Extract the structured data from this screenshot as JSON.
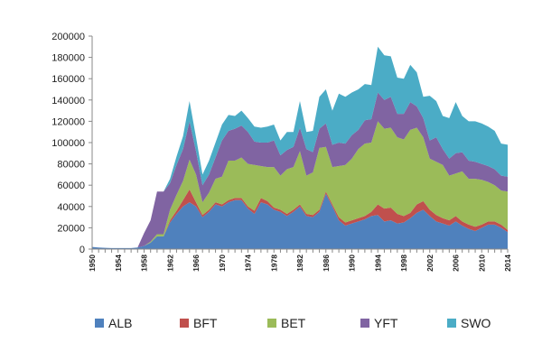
{
  "chart_data": {
    "type": "area",
    "stacked": true,
    "title": "",
    "xlabel": "",
    "ylabel": "",
    "xlim": [
      1950,
      2014
    ],
    "ylim": [
      0,
      200000
    ],
    "y_ticks": [
      0,
      20000,
      40000,
      60000,
      80000,
      100000,
      120000,
      140000,
      160000,
      180000,
      200000
    ],
    "y_tick_labels": [
      "0",
      "20000",
      "40000",
      "60000",
      "80000",
      "100000",
      "120000",
      "140000",
      "160000",
      "180000",
      "200000"
    ],
    "x_tick_labels": [
      "1950",
      "1954",
      "1958",
      "1962",
      "1966",
      "1970",
      "1974",
      "1978",
      "1982",
      "1986",
      "1990",
      "1994",
      "1998",
      "2002",
      "2006",
      "2010",
      "2014"
    ],
    "grid": false,
    "legend_position": "bottom",
    "x": [
      1950,
      1951,
      1952,
      1953,
      1954,
      1955,
      1956,
      1957,
      1958,
      1959,
      1960,
      1961,
      1962,
      1963,
      1964,
      1965,
      1966,
      1967,
      1968,
      1969,
      1970,
      1971,
      1972,
      1973,
      1974,
      1975,
      1976,
      1977,
      1978,
      1979,
      1980,
      1981,
      1982,
      1983,
      1984,
      1985,
      1986,
      1987,
      1988,
      1989,
      1990,
      1991,
      1992,
      1993,
      1994,
      1995,
      1996,
      1997,
      1998,
      1999,
      2000,
      2001,
      2002,
      2003,
      2004,
      2005,
      2006,
      2007,
      2008,
      2009,
      2010,
      2011,
      2012,
      2013,
      2014
    ],
    "series": [
      {
        "name": "ALB",
        "color": "#4f81bd",
        "values": [
          2000,
          1500,
          1200,
          1000,
          1000,
          1000,
          1000,
          1500,
          3000,
          6000,
          12000,
          12000,
          25000,
          33000,
          40000,
          44000,
          40000,
          30000,
          35000,
          42000,
          40000,
          44000,
          46000,
          46000,
          38000,
          33000,
          44000,
          42000,
          37000,
          35000,
          31000,
          35000,
          40000,
          31000,
          30000,
          35000,
          52000,
          40000,
          27000,
          22000,
          24000,
          26000,
          28000,
          31000,
          32000,
          26000,
          27000,
          24000,
          25000,
          29000,
          34000,
          37000,
          31000,
          26000,
          24000,
          22000,
          26000,
          22000,
          19000,
          17000,
          20000,
          23000,
          23000,
          20000,
          16000
        ]
      },
      {
        "name": "BFT",
        "color": "#c0504d",
        "values": [
          0,
          0,
          0,
          0,
          0,
          0,
          0,
          0,
          0,
          0,
          0,
          0,
          2000,
          3000,
          6000,
          12000,
          4000,
          2000,
          2000,
          2000,
          2000,
          2000,
          2000,
          2000,
          2000,
          3000,
          4000,
          3000,
          2000,
          2000,
          2000,
          2000,
          2000,
          2000,
          2000,
          2000,
          2000,
          2000,
          3000,
          3000,
          3000,
          3000,
          3000,
          4000,
          10000,
          12000,
          12000,
          9000,
          6000,
          5000,
          8000,
          8000,
          6000,
          6000,
          5000,
          5000,
          5000,
          4000,
          4000,
          4000,
          3000,
          3000,
          3000,
          3000,
          2000
        ]
      },
      {
        "name": "BET",
        "color": "#9bbb59",
        "values": [
          0,
          0,
          0,
          0,
          0,
          0,
          0,
          0,
          0,
          1000,
          2000,
          2000,
          10000,
          15000,
          18000,
          28000,
          26000,
          12000,
          16000,
          22000,
          26000,
          37000,
          35000,
          38000,
          40000,
          43000,
          30000,
          32000,
          38000,
          32000,
          42000,
          40000,
          50000,
          36000,
          40000,
          58000,
          42000,
          35000,
          48000,
          54000,
          58000,
          65000,
          68000,
          65000,
          78000,
          75000,
          75000,
          72000,
          72000,
          78000,
          72000,
          60000,
          48000,
          50000,
          50000,
          42000,
          40000,
          47000,
          43000,
          45000,
          42000,
          37000,
          34000,
          32000,
          36000
        ]
      },
      {
        "name": "YFT",
        "color": "#8064a2",
        "values": [
          0,
          0,
          0,
          0,
          0,
          0,
          0,
          0,
          12000,
          20000,
          40000,
          40000,
          25000,
          28000,
          30000,
          36000,
          22000,
          16000,
          17000,
          20000,
          34000,
          28000,
          30000,
          30000,
          30000,
          22000,
          22000,
          23000,
          25000,
          19000,
          18000,
          19000,
          22000,
          25000,
          19000,
          18000,
          22000,
          21000,
          22000,
          20000,
          22000,
          18000,
          22000,
          22000,
          27000,
          27000,
          29000,
          22000,
          24000,
          26000,
          20000,
          18000,
          17000,
          23000,
          15000,
          16000,
          19000,
          18000,
          17000,
          16000,
          15000,
          15000,
          15000,
          14000,
          14000
        ]
      },
      {
        "name": "SWO",
        "color": "#4bacc6",
        "values": [
          0,
          0,
          0,
          0,
          0,
          0,
          0,
          0,
          0,
          0,
          0,
          0,
          4000,
          8000,
          12000,
          19000,
          13000,
          10000,
          13000,
          14000,
          15000,
          15000,
          12000,
          14000,
          13000,
          14000,
          14000,
          15000,
          15000,
          14000,
          17000,
          14000,
          25000,
          16000,
          20000,
          30000,
          32000,
          32000,
          46000,
          44000,
          40000,
          38000,
          34000,
          32000,
          43000,
          42000,
          38000,
          34000,
          33000,
          35000,
          32000,
          20000,
          42000,
          34000,
          31000,
          38000,
          48000,
          34000,
          37000,
          38000,
          38000,
          37000,
          36000,
          30000,
          30000
        ]
      }
    ]
  }
}
